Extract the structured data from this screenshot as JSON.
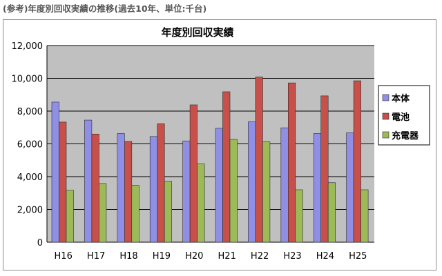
{
  "page": {
    "header": "(参考)年度別回収実績の推移(過去10年、単位:千台)"
  },
  "chart_data": {
    "type": "bar",
    "title": "年度別回収実績",
    "xlabel": "",
    "ylabel": "",
    "categories": [
      "H16",
      "H17",
      "H18",
      "H19",
      "H20",
      "H21",
      "H22",
      "H23",
      "H24",
      "H25"
    ],
    "series": [
      {
        "name": "本体",
        "color": "#8f8fe6",
        "values": [
          8550,
          7450,
          6630,
          6450,
          6180,
          6950,
          7350,
          6980,
          6630,
          6680
        ]
      },
      {
        "name": "電池",
        "color": "#c8504a",
        "values": [
          7330,
          6600,
          6150,
          7230,
          8380,
          9180,
          10080,
          9720,
          8930,
          9850
        ]
      },
      {
        "name": "充電器",
        "color": "#9cbb58",
        "values": [
          3170,
          3580,
          3470,
          3720,
          4780,
          6270,
          6130,
          3200,
          3630,
          3200
        ]
      }
    ],
    "ylim": [
      0,
      12000
    ],
    "yticks": [
      "0",
      "2,000",
      "4,000",
      "6,000",
      "8,000",
      "10,000",
      "12,000"
    ],
    "grid": true,
    "legend_position": "right",
    "plot_background": "#c0c0c0"
  }
}
